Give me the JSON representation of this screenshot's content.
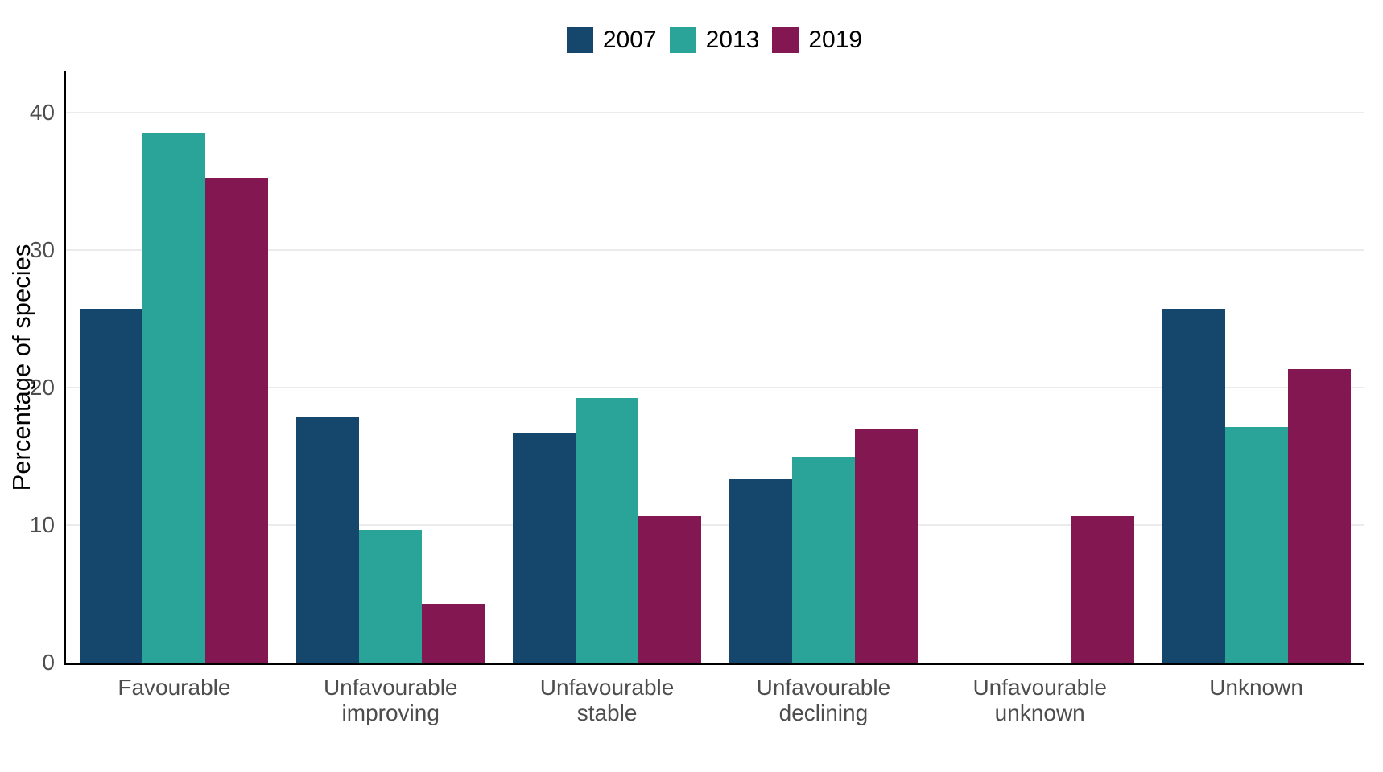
{
  "colors": {
    "background": "#ffffff",
    "axis_line": "#000000",
    "gridline": "#ebebeb",
    "axis_text": "#4d4d4d",
    "title_text": "#000000",
    "series_2007": "#15466B",
    "series_2013": "#2AA499",
    "series_2019": "#821752"
  },
  "chart_data": {
    "type": "bar",
    "title": "",
    "xlabel": "",
    "ylabel": "Percentage of species",
    "categories": [
      "Favourable",
      "Unfavourable improving",
      "Unfavourable stable",
      "Unfavourable declining",
      "Unfavourable unknown",
      "Unknown"
    ],
    "series": [
      {
        "name": "2007",
        "color": "#15466B",
        "values": [
          25.8,
          17.9,
          16.8,
          13.4,
          0,
          25.8
        ]
      },
      {
        "name": "2013",
        "color": "#2AA499",
        "values": [
          38.7,
          9.7,
          19.3,
          15.0,
          0,
          17.2
        ]
      },
      {
        "name": "2019",
        "color": "#821752",
        "values": [
          35.4,
          4.3,
          10.7,
          17.1,
          10.7,
          21.4
        ]
      }
    ],
    "y_ticks": [
      0,
      10,
      20,
      30,
      40
    ],
    "ylim": [
      0,
      43.2
    ],
    "grid": "horizontal-major",
    "legend_position": "top-center"
  }
}
